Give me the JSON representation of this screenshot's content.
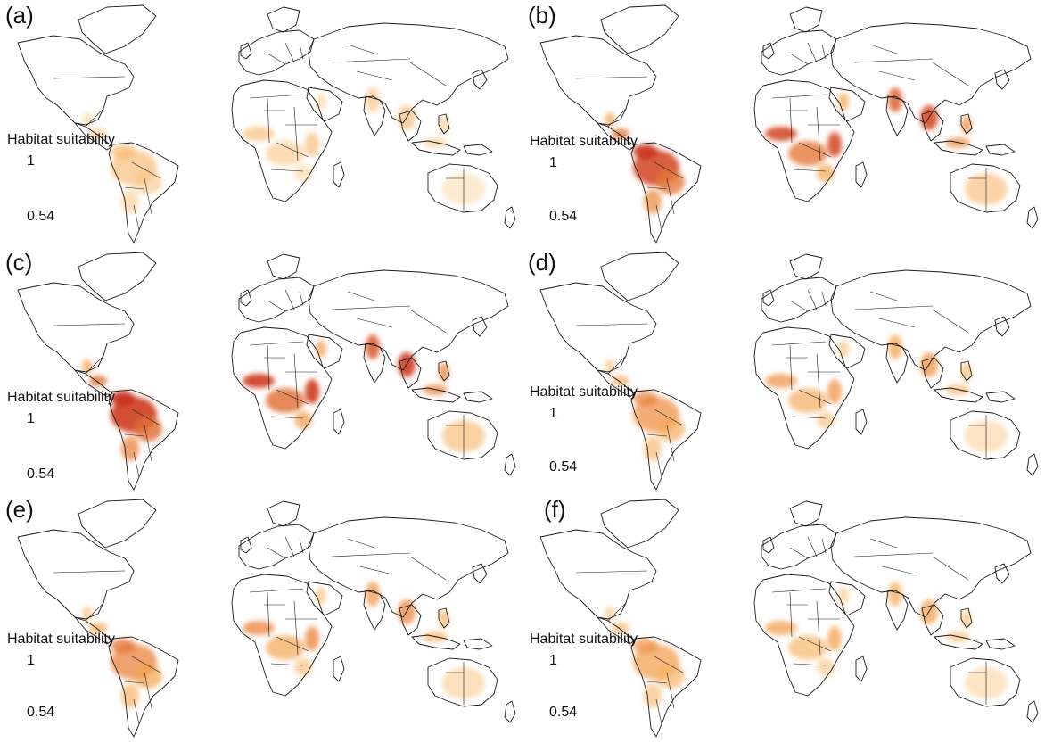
{
  "legend": {
    "title": "Habitat suitability",
    "max": "1",
    "min": "0.54"
  },
  "colors": {
    "low": "#fdf0c8",
    "mid": "#f4a04a",
    "high": "#c8301c",
    "border": "#1a1a1a"
  },
  "panels": [
    {
      "label": "(a)",
      "intensity": 0.35
    },
    {
      "label": "(b)",
      "intensity": 0.85
    },
    {
      "label": "(c)",
      "intensity": 0.9
    },
    {
      "label": "(d)",
      "intensity": 0.55
    },
    {
      "label": "(e)",
      "intensity": 0.6
    },
    {
      "label": "(f)",
      "intensity": 0.5
    }
  ]
}
